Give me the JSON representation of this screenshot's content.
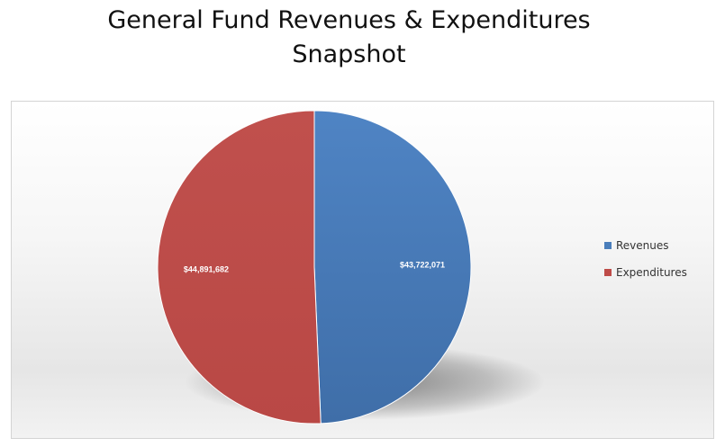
{
  "title_line1": "General Fund Revenues & Expenditures",
  "title_line2": "Snapshot",
  "chart_data": {
    "type": "pie",
    "title": "General Fund Revenues & Expenditures Snapshot",
    "categories": [
      "Revenues",
      "Expenditures"
    ],
    "values": [
      43722071,
      44891682
    ],
    "data_labels": [
      "$43,722,071",
      "$44,891,682"
    ],
    "colors": [
      "#4a7ebb",
      "#be4b48"
    ],
    "legend": "right"
  }
}
